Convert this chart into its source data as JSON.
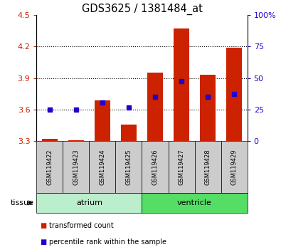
{
  "title": "GDS3625 / 1381484_at",
  "samples": [
    "GSM119422",
    "GSM119423",
    "GSM119424",
    "GSM119425",
    "GSM119426",
    "GSM119427",
    "GSM119428",
    "GSM119429"
  ],
  "red_values": [
    3.32,
    3.31,
    3.69,
    3.46,
    3.95,
    4.37,
    3.93,
    4.19
  ],
  "blue_values": [
    3.6,
    3.6,
    3.67,
    3.62,
    3.72,
    3.87,
    3.72,
    3.75
  ],
  "red_base": 3.3,
  "ylim_left": [
    3.3,
    4.5
  ],
  "ylim_right": [
    0,
    100
  ],
  "yticks_left": [
    3.3,
    3.6,
    3.9,
    4.2,
    4.5
  ],
  "yticks_right": [
    0,
    25,
    50,
    75,
    100
  ],
  "ytick_labels_left": [
    "3.3",
    "3.6",
    "3.9",
    "4.2",
    "4.5"
  ],
  "ytick_labels_right": [
    "0",
    "25",
    "50",
    "75",
    "100%"
  ],
  "tissue_groups": [
    {
      "label": "atrium",
      "indices": [
        0,
        1,
        2,
        3
      ],
      "color": "#bbeecc"
    },
    {
      "label": "ventricle",
      "indices": [
        4,
        5,
        6,
        7
      ],
      "color": "#55dd66"
    }
  ],
  "bar_color": "#cc2200",
  "dot_color": "#2200cc",
  "bar_width": 0.6,
  "grid_dotted_color": "#000000",
  "background_color": "#ffffff",
  "sample_box_color": "#cccccc",
  "legend_items": [
    {
      "color": "#cc2200",
      "label": "transformed count"
    },
    {
      "color": "#2200cc",
      "label": "percentile rank within the sample"
    }
  ],
  "tissue_label": "tissue",
  "title_fontsize": 10.5,
  "tick_fontsize": 8,
  "sample_fontsize": 6,
  "tissue_fontsize": 8,
  "legend_fontsize": 7
}
